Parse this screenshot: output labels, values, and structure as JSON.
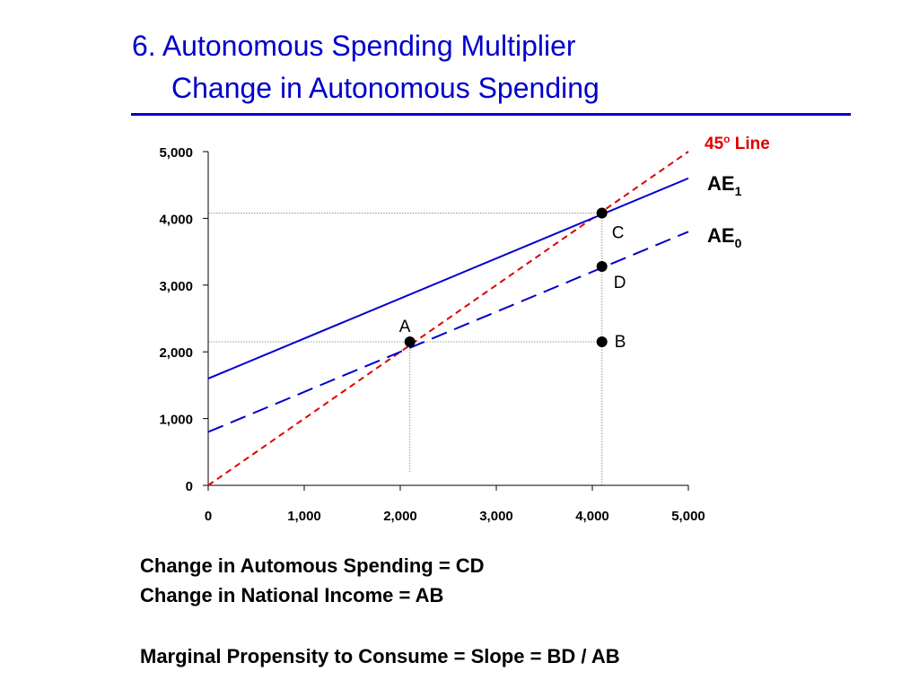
{
  "colors": {
    "title": "#0000CC",
    "rule": "#0000CC",
    "ae": "#0000CC",
    "line45": "#E00000",
    "guide": "#999999",
    "axis": "#000000"
  },
  "title": {
    "line1": "6. Autonomous Spending Multiplier",
    "line2": "Change in Autonomous Spending"
  },
  "chart_data": {
    "type": "line",
    "xlim": [
      0,
      5000
    ],
    "ylim": [
      0,
      5000
    ],
    "x_ticks": [
      "0",
      "1,000",
      "2,000",
      "3,000",
      "4,000",
      "5,000"
    ],
    "y_ticks": [
      "0",
      "1,000",
      "2,000",
      "3,000",
      "4,000",
      "5,000"
    ],
    "grid": false,
    "series": [
      {
        "name": "45",
        "name_sup": "o",
        "name_suffix": " Line",
        "x": [
          0,
          5000
        ],
        "y": [
          0,
          5000
        ],
        "style": "dashed",
        "color": "#E00000"
      },
      {
        "name": "AE",
        "name_sub": "1",
        "x": [
          0,
          5000
        ],
        "y": [
          1600,
          4600
        ],
        "style": "solid",
        "color": "#0000CC"
      },
      {
        "name": "AE",
        "name_sub": "0",
        "x": [
          0,
          5000
        ],
        "y": [
          800,
          3800
        ],
        "style": "dashed",
        "color": "#0000CC"
      }
    ],
    "points": [
      {
        "label": "A",
        "x": 2100,
        "y": 2150
      },
      {
        "label": "B",
        "x": 4100,
        "y": 2150
      },
      {
        "label": "C",
        "x": 4100,
        "y": 4080
      },
      {
        "label": "D",
        "x": 4100,
        "y": 3280
      }
    ],
    "guides": [
      {
        "x": [
          2100,
          2100
        ],
        "y": [
          200,
          2150
        ]
      },
      {
        "x": [
          4100,
          4100
        ],
        "y": [
          0,
          4080
        ]
      },
      {
        "x": [
          0,
          4100
        ],
        "y": [
          2150,
          2150
        ]
      },
      {
        "x": [
          0,
          4100
        ],
        "y": [
          4080,
          4080
        ]
      }
    ]
  },
  "notes": {
    "line1": "Change in Automous Spending = CD",
    "line2": "Change in National Income = AB",
    "line3": "Marginal Propensity to Consume = Slope = BD / AB"
  }
}
